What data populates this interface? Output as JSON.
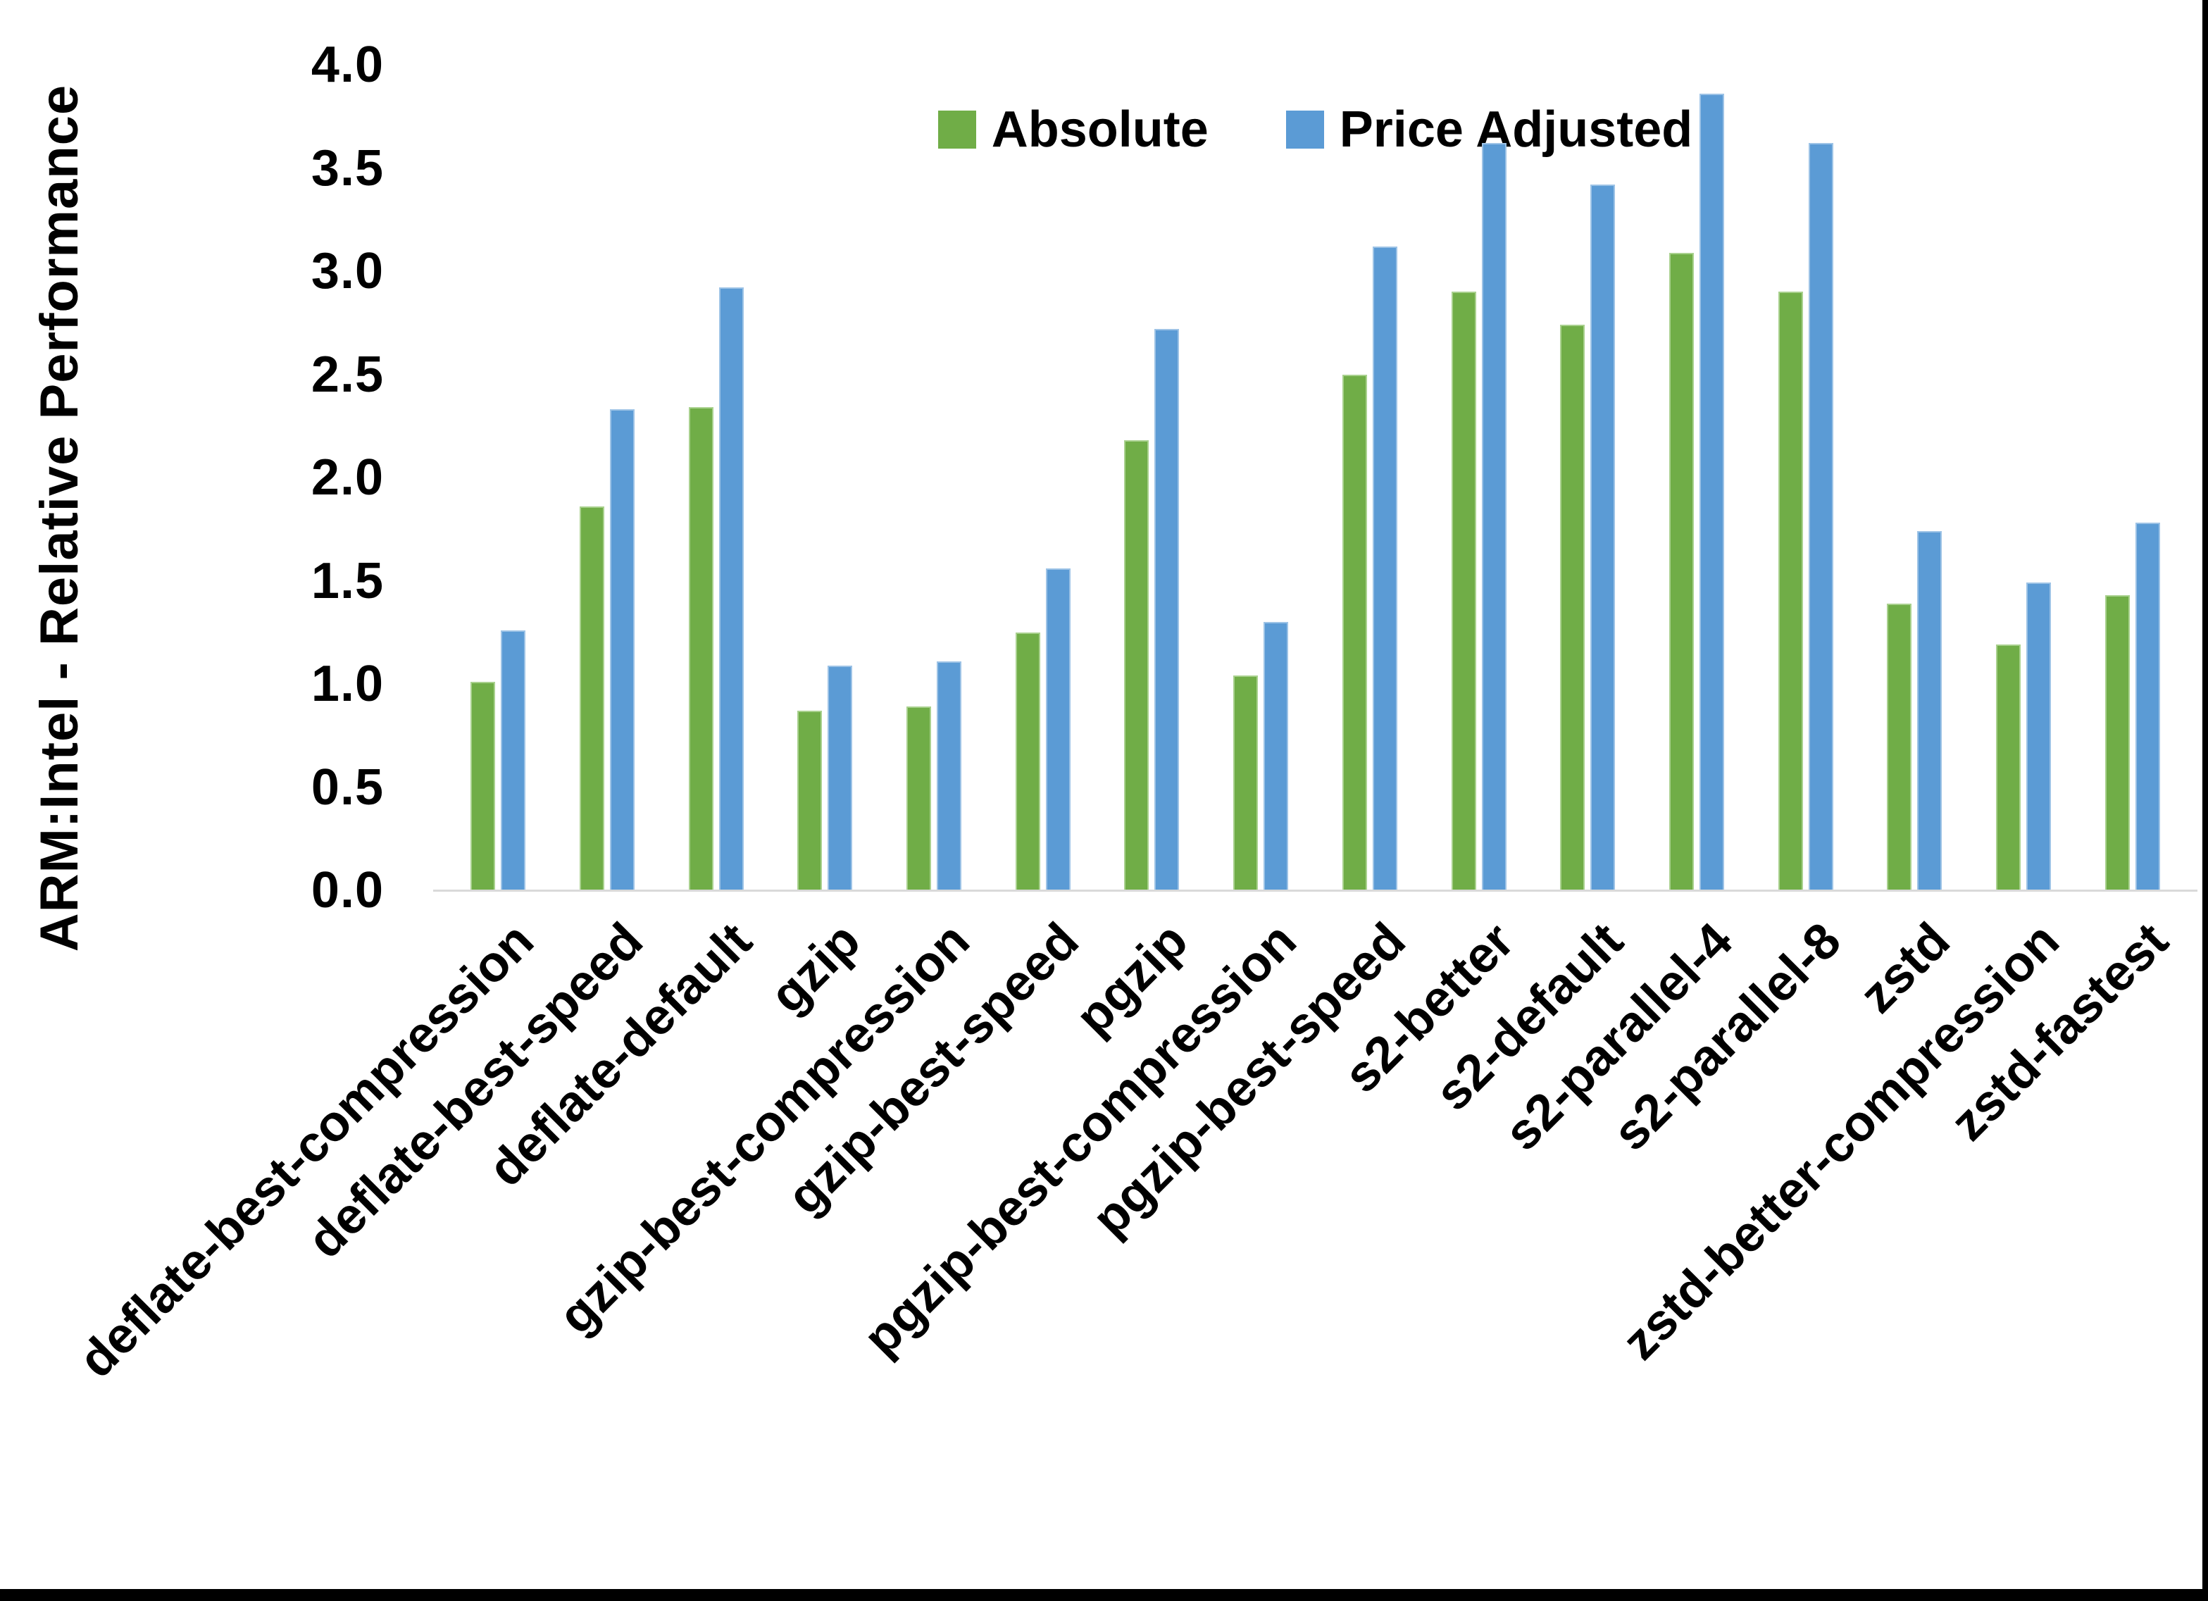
{
  "chart_data": {
    "type": "bar",
    "title": "",
    "xlabel": "",
    "ylabel": "ARM:Intel - Relative Performance",
    "ylim": [
      0,
      4.0
    ],
    "ytick_labels": [
      "0.0",
      "0.5",
      "1.0",
      "1.5",
      "2.0",
      "2.5",
      "3.0",
      "3.5",
      "4.0"
    ],
    "grid": false,
    "legend_position": "top-center",
    "axis_line_color": "#d9d9d9",
    "categories": [
      "deflate-best-compression",
      "deflate-best-speed",
      "deflate-default",
      "gzip",
      "gzip-best-compression",
      "gzip-best-speed",
      "pgzip",
      "pgzip-best-compression",
      "pgzip-best-speed",
      "s2-better",
      "s2-default",
      "s2-parallel-4",
      "s2-parallel-8",
      "zstd",
      "zstd-better-compression",
      "zstd-fastest"
    ],
    "series": [
      {
        "name": "Absolute",
        "color": "#70AD47",
        "edge_color": "#A9D18E",
        "values": [
          1.01,
          1.86,
          2.34,
          0.87,
          0.89,
          1.25,
          2.18,
          1.04,
          2.5,
          2.9,
          2.74,
          3.09,
          2.9,
          1.39,
          1.19,
          1.43
        ]
      },
      {
        "name": "Price Adjusted",
        "color": "#5B9BD5",
        "edge_color": "#9DC3E6",
        "values": [
          1.26,
          2.33,
          2.92,
          1.09,
          1.11,
          1.56,
          2.72,
          1.3,
          3.12,
          3.62,
          3.42,
          3.86,
          3.62,
          1.74,
          1.49,
          1.78
        ]
      }
    ]
  }
}
